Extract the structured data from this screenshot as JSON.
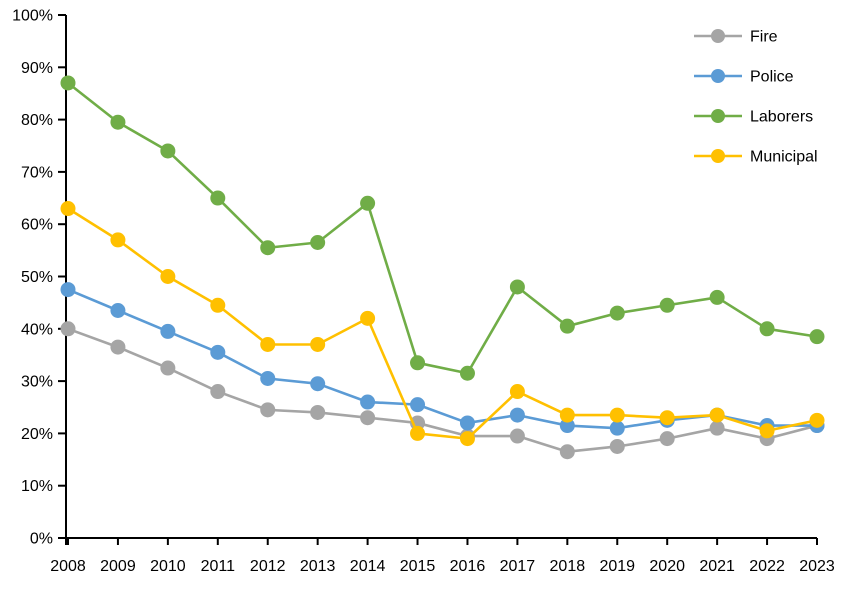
{
  "chart_data": {
    "type": "line",
    "title": "",
    "xlabel": "",
    "ylabel": "",
    "categories": [
      "2008",
      "2009",
      "2010",
      "2011",
      "2012",
      "2013",
      "2014",
      "2015",
      "2016",
      "2017",
      "2018",
      "2019",
      "2020",
      "2021",
      "2022",
      "2023"
    ],
    "series": [
      {
        "name": "Fire",
        "color": "#A5A5A5",
        "values": [
          40,
          36.5,
          32.5,
          28,
          24.5,
          24,
          23,
          22,
          19.5,
          19.5,
          16.5,
          17.5,
          19,
          21,
          19,
          21.5
        ]
      },
      {
        "name": "Police",
        "color": "#5B9BD5",
        "values": [
          47.5,
          43.5,
          39.5,
          35.5,
          30.5,
          29.5,
          26,
          25.5,
          22,
          23.5,
          21.5,
          21,
          22.5,
          23.5,
          21.5,
          21.5
        ]
      },
      {
        "name": "Laborers",
        "color": "#70AD47",
        "values": [
          87,
          79.5,
          74,
          65,
          55.5,
          56.5,
          64,
          33.5,
          31.5,
          48,
          40.5,
          43,
          44.5,
          46,
          40,
          38.5
        ]
      },
      {
        "name": "Municipal",
        "color": "#FFC000",
        "values": [
          63,
          57,
          50,
          44.5,
          37,
          37,
          42,
          20,
          19,
          28,
          23.5,
          23.5,
          23,
          23.5,
          20.5,
          22.5
        ]
      }
    ],
    "ylim": [
      0,
      100
    ],
    "y_tick_step": 10,
    "y_tick_labels": [
      "0%",
      "10%",
      "20%",
      "30%",
      "40%",
      "50%",
      "60%",
      "70%",
      "80%",
      "90%",
      "100%"
    ],
    "grid": false,
    "legend_position": "top-right",
    "legend_labels": [
      "Fire",
      "Police",
      "Laborers",
      "Municipal"
    ]
  },
  "colors": {
    "axis": "#000000",
    "text": "#000000",
    "background": "#FFFFFF"
  }
}
